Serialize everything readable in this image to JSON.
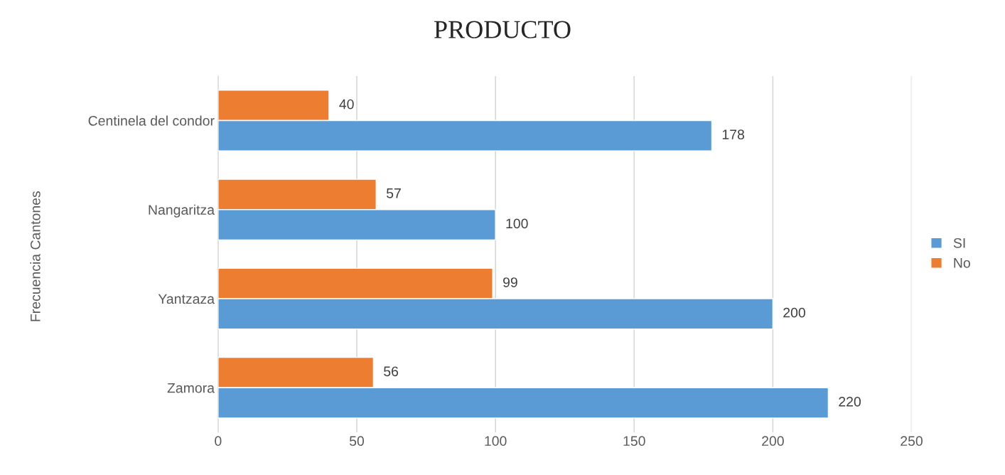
{
  "chart_data": {
    "type": "bar",
    "orientation": "horizontal",
    "title": "PRODUCTO",
    "ylabel": "Frecuencia Cantones",
    "categories": [
      "Centinela del condor",
      "Nangaritza",
      "Yantzaza",
      "Zamora"
    ],
    "series": [
      {
        "name": "No",
        "color": "#ed7d31",
        "values": [
          40,
          57,
          99,
          56
        ]
      },
      {
        "name": "SI",
        "color": "#5b9bd5",
        "values": [
          178,
          100,
          200,
          220
        ]
      }
    ],
    "xlim": [
      0,
      250
    ],
    "xticks": [
      0,
      50,
      100,
      150,
      200,
      250
    ],
    "grid": "x",
    "legend": "right",
    "data_labels": true
  }
}
